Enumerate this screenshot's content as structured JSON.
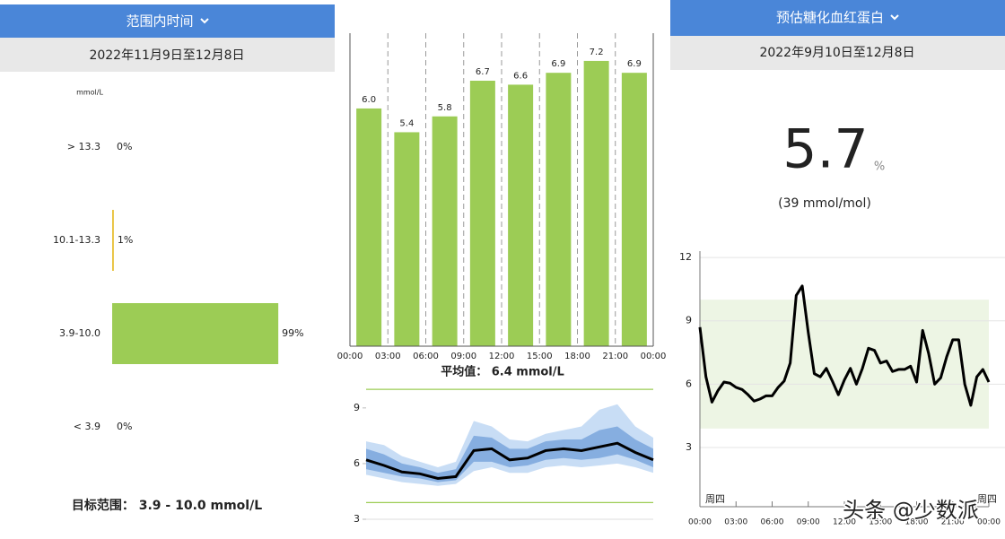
{
  "panels": [
    {
      "header": "范围内时间",
      "date_range": "2022年11月9日至12月8日",
      "footer": "目标范围： 3.9 - 10.0 mmol/L"
    },
    {
      "caption": "平均值： 6.4 mmol/L"
    },
    {
      "header": "预估糖化血红蛋白",
      "date_range": "2022年9月10日至12月8日",
      "estimate": 5.7,
      "unit": "%",
      "estimate_alt": "(39 mmol/mol)"
    }
  ],
  "chart_data": [
    {
      "type": "hbar",
      "unit_label": "mmol/L",
      "categories": [
        "> 13.3",
        "10.1-13.3",
        "3.9-10.0",
        "< 3.9"
      ],
      "values": [
        0,
        1,
        99,
        0
      ],
      "value_labels": [
        "0%",
        "1%",
        "99%",
        "0%"
      ],
      "colors": [
        null,
        "#e8c13a",
        "#9ccc55",
        null
      ],
      "xlim": [
        0,
        100
      ]
    },
    {
      "type": "histogram",
      "bins": [
        "00:00",
        "03:00",
        "06:00",
        "09:00",
        "12:00",
        "15:00",
        "18:00",
        "21:00",
        "00:00"
      ],
      "values": [
        6.0,
        5.4,
        5.8,
        6.7,
        6.6,
        6.9,
        7.2,
        6.9
      ],
      "value_labels": [
        "6.0",
        "5.4",
        "5.8",
        "6.7",
        "6.6",
        "6.9",
        "7.2",
        "6.9"
      ],
      "color": "#9ccc55",
      "ylim": [
        0,
        7.9
      ]
    },
    {
      "type": "band",
      "x": [
        0,
        1.5,
        3,
        4.5,
        6,
        7.5,
        9,
        10.5,
        12,
        13.5,
        15,
        16.5,
        18,
        19.5,
        21,
        22.5,
        24
      ],
      "xlim": [
        0,
        24
      ],
      "ylim": [
        3,
        10.2
      ],
      "yticks": [
        3,
        6,
        9
      ],
      "target_lines": [
        3.9,
        10.0
      ],
      "target_color": "#9ccc55",
      "bands": [
        {
          "color": "#c8ddf5",
          "low": [
            5.4,
            5.2,
            5.0,
            4.9,
            4.8,
            4.9,
            5.6,
            5.8,
            5.5,
            5.5,
            5.8,
            5.9,
            5.8,
            5.9,
            6.0,
            5.8,
            5.5
          ],
          "high": [
            7.2,
            7.0,
            6.4,
            6.1,
            5.8,
            6.1,
            8.3,
            8.0,
            7.3,
            7.2,
            7.6,
            7.8,
            8.0,
            8.9,
            9.2,
            8.0,
            7.4
          ]
        },
        {
          "color": "#86aee0",
          "low": [
            5.7,
            5.5,
            5.3,
            5.2,
            5.0,
            5.1,
            6.1,
            6.1,
            5.8,
            5.9,
            6.2,
            6.3,
            6.2,
            6.3,
            6.5,
            6.2,
            5.8
          ],
          "high": [
            6.8,
            6.5,
            6.0,
            5.8,
            5.5,
            5.7,
            7.5,
            7.4,
            6.8,
            6.8,
            7.2,
            7.3,
            7.3,
            7.8,
            8.0,
            7.3,
            6.8
          ]
        }
      ],
      "median": {
        "color": "#000000",
        "values": [
          6.2,
          5.9,
          5.55,
          5.45,
          5.2,
          5.3,
          6.7,
          6.8,
          6.2,
          6.3,
          6.7,
          6.8,
          6.7,
          6.9,
          7.1,
          6.6,
          6.2
        ]
      }
    },
    {
      "type": "line",
      "x": [
        0,
        0.5,
        1,
        1.5,
        2,
        2.5,
        3,
        3.5,
        4,
        4.5,
        5,
        5.5,
        6,
        6.5,
        7,
        7.5,
        8,
        8.5,
        9,
        9.5,
        10,
        10.5,
        11,
        11.5,
        12,
        12.5,
        13,
        13.5,
        14,
        14.5,
        15,
        15.5,
        16,
        16.5,
        17,
        17.5,
        18,
        18.5,
        19,
        19.5,
        20,
        20.5,
        21,
        21.5,
        22,
        22.5,
        23,
        23.5,
        24
      ],
      "values": [
        8.7,
        6.35,
        5.15,
        5.7,
        6.1,
        6.05,
        5.85,
        5.75,
        5.5,
        5.2,
        5.3,
        5.45,
        5.45,
        5.85,
        6.15,
        7.0,
        10.2,
        10.65,
        8.45,
        6.5,
        6.35,
        6.75,
        6.15,
        5.5,
        6.2,
        6.75,
        6.0,
        6.75,
        7.7,
        7.6,
        7.0,
        7.1,
        6.6,
        6.7,
        6.7,
        6.85,
        6.1,
        8.55,
        7.45,
        6.0,
        6.3,
        7.3,
        8.1,
        8.1,
        6.0,
        5.0,
        6.35,
        6.7,
        6.1
      ],
      "color": "#000000",
      "xlim": [
        0,
        24
      ],
      "ylim": [
        0.2,
        12.3
      ],
      "yticks": [
        3,
        6,
        9,
        12
      ],
      "xticks": [
        {
          "value": 0,
          "label": "00:00"
        },
        {
          "value": 3,
          "label": "03:00"
        },
        {
          "value": 6,
          "label": "06:00"
        },
        {
          "value": 9,
          "label": "09:00"
        },
        {
          "value": 12,
          "label": "12:00"
        },
        {
          "value": 15,
          "label": "15:00"
        },
        {
          "value": 18,
          "label": "18:00"
        },
        {
          "value": 21,
          "label": "21:00"
        },
        {
          "value": 24,
          "label": "00:00"
        }
      ],
      "target_range": [
        3.9,
        10.0
      ],
      "target_color": "#edf5e4",
      "grid": true,
      "day_labels": [
        "周四",
        "周四"
      ]
    }
  ],
  "watermark": "头条 @少数派"
}
